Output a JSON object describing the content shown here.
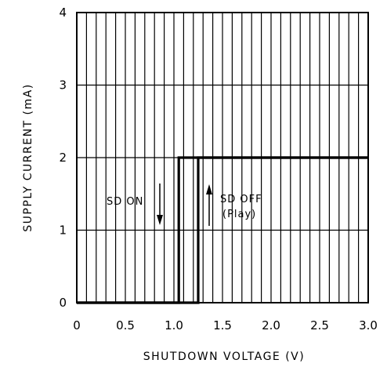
{
  "chart_data": {
    "type": "line",
    "xlabel": "SHUTDOWN VOLTAGE (V)",
    "ylabel": "SUPPLY CURRENT (mA)",
    "xlim": [
      0,
      3.0
    ],
    "ylim": [
      0,
      4
    ],
    "x_ticks": [
      "0",
      "0.5",
      "1.0",
      "1.5",
      "2.0",
      "2.5",
      "3.0"
    ],
    "y_ticks": [
      "0",
      "1",
      "2",
      "3",
      "4"
    ],
    "grid": true,
    "series": [
      {
        "name": "SD ON",
        "x": [
          0,
          1.05,
          1.05,
          3.0
        ],
        "y": [
          0,
          0,
          2,
          2
        ]
      },
      {
        "name": "SD OFF (Play)",
        "x": [
          0,
          1.25,
          1.25,
          3.0
        ],
        "y": [
          0,
          0,
          2,
          2
        ]
      }
    ],
    "annotations": [
      {
        "text": "SD ON",
        "arrow": "down"
      },
      {
        "text": "SD OFF",
        "text2": "(Play)",
        "arrow": "up"
      }
    ]
  }
}
